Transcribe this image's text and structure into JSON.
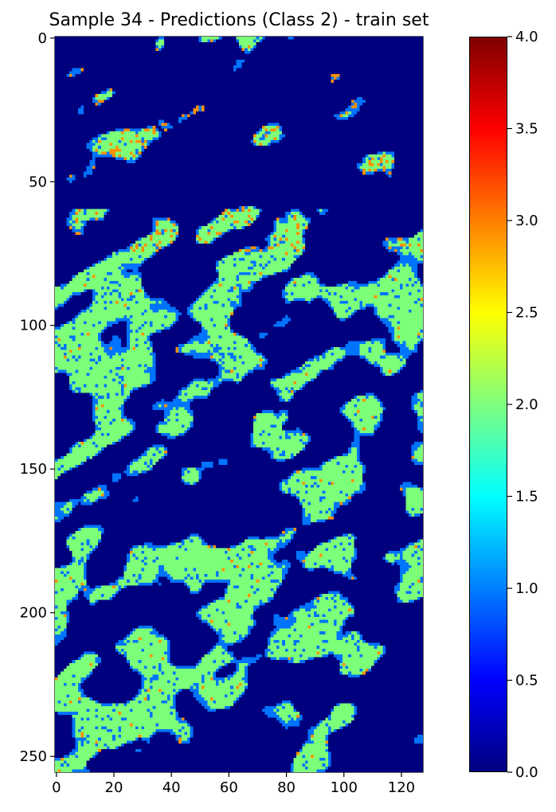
{
  "chart_data": {
    "type": "heatmap",
    "title": "Sample 34 - Predictions (Class 2) - train set",
    "grid": false,
    "colormap": "jet",
    "image_shape": [
      256,
      128
    ],
    "x_axis": {
      "lim": [
        -0.5,
        127.5
      ],
      "ticks": [
        0,
        20,
        40,
        60,
        80,
        100,
        120
      ],
      "tick_labels": [
        "0",
        "20",
        "40",
        "60",
        "80",
        "100",
        "120"
      ]
    },
    "y_axis": {
      "lim": [
        255.5,
        -0.5
      ],
      "ticks": [
        0,
        50,
        100,
        150,
        200,
        250
      ],
      "tick_labels": [
        "0",
        "50",
        "100",
        "150",
        "200",
        "250"
      ]
    },
    "colorbar": {
      "lim": [
        0.0,
        4.0
      ],
      "ticks": [
        0.0,
        0.5,
        1.0,
        1.5,
        2.0,
        2.5,
        3.0,
        3.5,
        4.0
      ],
      "tick_labels": [
        "0.0",
        "0.5",
        "1.0",
        "1.5",
        "2.0",
        "2.5",
        "3.0",
        "3.5",
        "4.0"
      ]
    },
    "value_levels": {
      "background": 0,
      "edge": 1,
      "region": 2,
      "accent": 3,
      "rare": 4
    },
    "colors": {
      "0": "#00007f",
      "1": "#0074ff",
      "2": "#7cff79",
      "3": "#ff9100",
      "4": "#7f0000"
    }
  }
}
